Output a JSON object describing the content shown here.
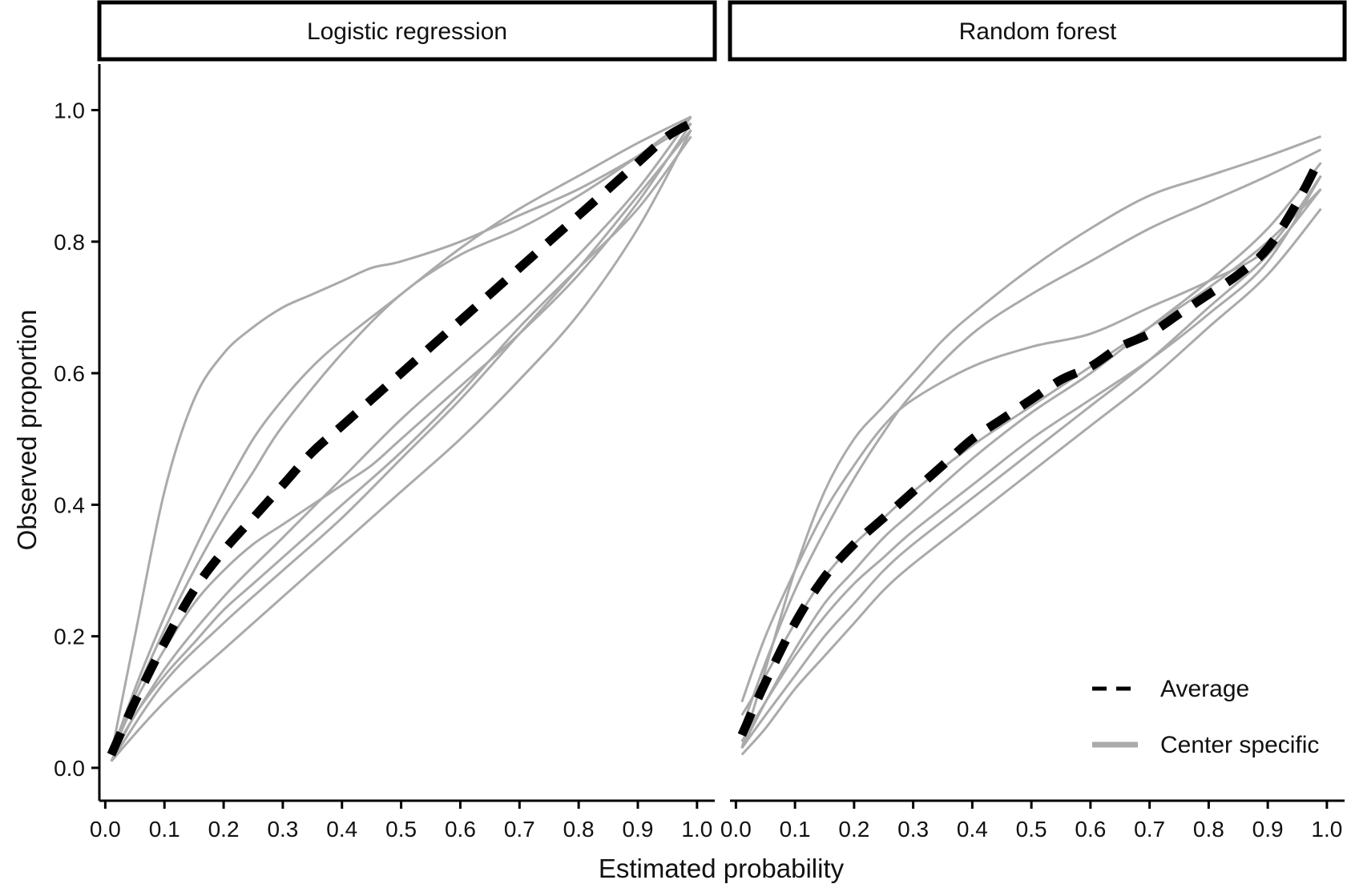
{
  "chart_data": [
    {
      "type": "line",
      "title": "Logistic regression",
      "xlabel": "Estimated probability",
      "ylabel": "Observed proportion",
      "xlim": [
        -0.01,
        1.03
      ],
      "ylim": [
        -0.05,
        1.07
      ],
      "x_ticks": [
        "0.0",
        "0.1",
        "0.2",
        "0.3",
        "0.4",
        "0.5",
        "0.6",
        "0.7",
        "0.8",
        "0.9",
        "1.0"
      ],
      "y_ticks": [
        "0.0",
        "0.2",
        "0.4",
        "0.6",
        "0.8",
        "1.0"
      ],
      "series": [
        {
          "name": "Average",
          "style": "dashed",
          "color": "#000000",
          "x": [
            0.01,
            0.05,
            0.1,
            0.15,
            0.2,
            0.25,
            0.3,
            0.35,
            0.4,
            0.45,
            0.5,
            0.55,
            0.6,
            0.65,
            0.7,
            0.75,
            0.8,
            0.85,
            0.9,
            0.95,
            0.99
          ],
          "y": [
            0.02,
            0.1,
            0.19,
            0.27,
            0.33,
            0.38,
            0.43,
            0.48,
            0.52,
            0.56,
            0.6,
            0.64,
            0.68,
            0.72,
            0.76,
            0.8,
            0.84,
            0.88,
            0.92,
            0.96,
            0.98
          ]
        },
        {
          "name": "Center specific 1",
          "style": "solid",
          "color": "#aaaaaa",
          "x": [
            0.01,
            0.05,
            0.1,
            0.15,
            0.2,
            0.25,
            0.3,
            0.35,
            0.4,
            0.45,
            0.5,
            0.6,
            0.7,
            0.8,
            0.9,
            0.99
          ],
          "y": [
            0.02,
            0.2,
            0.42,
            0.56,
            0.63,
            0.67,
            0.7,
            0.72,
            0.74,
            0.76,
            0.77,
            0.8,
            0.84,
            0.88,
            0.93,
            0.98
          ]
        },
        {
          "name": "Center specific 2",
          "style": "solid",
          "color": "#aaaaaa",
          "x": [
            0.01,
            0.05,
            0.1,
            0.15,
            0.2,
            0.25,
            0.3,
            0.35,
            0.4,
            0.5,
            0.6,
            0.7,
            0.8,
            0.9,
            0.99
          ],
          "y": [
            0.02,
            0.12,
            0.23,
            0.33,
            0.42,
            0.5,
            0.56,
            0.61,
            0.65,
            0.72,
            0.79,
            0.85,
            0.9,
            0.95,
            0.99
          ]
        },
        {
          "name": "Center specific 3",
          "style": "solid",
          "color": "#aaaaaa",
          "x": [
            0.01,
            0.05,
            0.1,
            0.15,
            0.2,
            0.25,
            0.3,
            0.4,
            0.5,
            0.6,
            0.7,
            0.8,
            0.9,
            0.99
          ],
          "y": [
            0.02,
            0.11,
            0.21,
            0.3,
            0.38,
            0.45,
            0.52,
            0.63,
            0.72,
            0.78,
            0.82,
            0.87,
            0.93,
            0.99
          ]
        },
        {
          "name": "Center specific 4",
          "style": "solid",
          "color": "#aaaaaa",
          "x": [
            0.01,
            0.05,
            0.1,
            0.15,
            0.2,
            0.25,
            0.3,
            0.35,
            0.4,
            0.45,
            0.5,
            0.6,
            0.7,
            0.8,
            0.9,
            0.99
          ],
          "y": [
            0.02,
            0.1,
            0.18,
            0.25,
            0.3,
            0.34,
            0.37,
            0.4,
            0.43,
            0.46,
            0.5,
            0.58,
            0.66,
            0.75,
            0.86,
            0.98
          ]
        },
        {
          "name": "Center specific 5",
          "style": "solid",
          "color": "#aaaaaa",
          "x": [
            0.01,
            0.05,
            0.1,
            0.15,
            0.2,
            0.25,
            0.3,
            0.4,
            0.5,
            0.6,
            0.7,
            0.8,
            0.9,
            0.99
          ],
          "y": [
            0.01,
            0.08,
            0.14,
            0.19,
            0.24,
            0.28,
            0.32,
            0.4,
            0.48,
            0.57,
            0.67,
            0.76,
            0.85,
            0.96
          ]
        },
        {
          "name": "Center specific 6",
          "style": "solid",
          "color": "#aaaaaa",
          "x": [
            0.01,
            0.1,
            0.2,
            0.3,
            0.4,
            0.5,
            0.6,
            0.7,
            0.8,
            0.9,
            0.99
          ],
          "y": [
            0.01,
            0.13,
            0.22,
            0.3,
            0.38,
            0.47,
            0.56,
            0.66,
            0.76,
            0.87,
            0.97
          ]
        },
        {
          "name": "Center specific 7",
          "style": "solid",
          "color": "#aaaaaa",
          "x": [
            0.01,
            0.1,
            0.2,
            0.3,
            0.4,
            0.5,
            0.6,
            0.7,
            0.8,
            0.9,
            0.99
          ],
          "y": [
            0.01,
            0.1,
            0.18,
            0.26,
            0.34,
            0.42,
            0.5,
            0.59,
            0.69,
            0.82,
            0.97
          ]
        },
        {
          "name": "Center specific 8",
          "style": "solid",
          "color": "#aaaaaa",
          "x": [
            0.01,
            0.1,
            0.2,
            0.3,
            0.4,
            0.5,
            0.6,
            0.7,
            0.8,
            0.9,
            0.99
          ],
          "y": [
            0.02,
            0.15,
            0.26,
            0.35,
            0.44,
            0.53,
            0.61,
            0.69,
            0.78,
            0.88,
            0.99
          ]
        }
      ]
    },
    {
      "type": "line",
      "title": "Random forest",
      "xlabel": "Estimated probability",
      "ylabel": "Observed proportion",
      "xlim": [
        -0.01,
        1.03
      ],
      "ylim": [
        -0.05,
        1.07
      ],
      "x_ticks": [
        "0.0",
        "0.1",
        "0.2",
        "0.3",
        "0.4",
        "0.5",
        "0.6",
        "0.7",
        "0.8",
        "0.9",
        "1.0"
      ],
      "y_ticks": [
        "0.0",
        "0.2",
        "0.4",
        "0.6",
        "0.8",
        "1.0"
      ],
      "series": [
        {
          "name": "Average",
          "style": "dashed",
          "color": "#000000",
          "x": [
            0.01,
            0.05,
            0.1,
            0.15,
            0.2,
            0.25,
            0.3,
            0.35,
            0.4,
            0.45,
            0.5,
            0.55,
            0.6,
            0.65,
            0.7,
            0.75,
            0.8,
            0.85,
            0.9,
            0.95,
            0.99
          ],
          "y": [
            0.05,
            0.13,
            0.22,
            0.29,
            0.34,
            0.38,
            0.42,
            0.46,
            0.5,
            0.53,
            0.56,
            0.59,
            0.61,
            0.64,
            0.66,
            0.69,
            0.72,
            0.75,
            0.79,
            0.86,
            0.93
          ]
        },
        {
          "name": "Center specific 1",
          "style": "solid",
          "color": "#aaaaaa",
          "x": [
            0.01,
            0.05,
            0.1,
            0.15,
            0.2,
            0.25,
            0.3,
            0.4,
            0.5,
            0.6,
            0.7,
            0.8,
            0.9,
            0.99
          ],
          "y": [
            0.1,
            0.2,
            0.3,
            0.39,
            0.46,
            0.52,
            0.56,
            0.61,
            0.64,
            0.66,
            0.7,
            0.74,
            0.79,
            0.9
          ]
        },
        {
          "name": "Center specific 2",
          "style": "solid",
          "color": "#aaaaaa",
          "x": [
            0.01,
            0.05,
            0.1,
            0.15,
            0.2,
            0.25,
            0.3,
            0.35,
            0.4,
            0.5,
            0.6,
            0.7,
            0.8,
            0.9,
            0.99
          ],
          "y": [
            0.03,
            0.15,
            0.3,
            0.42,
            0.5,
            0.55,
            0.6,
            0.65,
            0.69,
            0.76,
            0.82,
            0.87,
            0.9,
            0.93,
            0.96
          ]
        },
        {
          "name": "Center specific 3",
          "style": "solid",
          "color": "#aaaaaa",
          "x": [
            0.01,
            0.05,
            0.1,
            0.15,
            0.2,
            0.25,
            0.3,
            0.4,
            0.5,
            0.6,
            0.7,
            0.8,
            0.9,
            0.99
          ],
          "y": [
            0.06,
            0.16,
            0.27,
            0.36,
            0.44,
            0.51,
            0.57,
            0.66,
            0.72,
            0.77,
            0.82,
            0.86,
            0.9,
            0.94
          ]
        },
        {
          "name": "Center specific 4",
          "style": "solid",
          "color": "#aaaaaa",
          "x": [
            0.01,
            0.05,
            0.1,
            0.15,
            0.2,
            0.25,
            0.3,
            0.4,
            0.5,
            0.6,
            0.7,
            0.8,
            0.9,
            0.99
          ],
          "y": [
            0.03,
            0.1,
            0.18,
            0.25,
            0.3,
            0.35,
            0.39,
            0.47,
            0.54,
            0.6,
            0.67,
            0.74,
            0.82,
            0.92
          ]
        },
        {
          "name": "Center specific 5",
          "style": "solid",
          "color": "#aaaaaa",
          "x": [
            0.01,
            0.05,
            0.1,
            0.15,
            0.2,
            0.25,
            0.3,
            0.4,
            0.5,
            0.6,
            0.7,
            0.8,
            0.9,
            0.99
          ],
          "y": [
            0.04,
            0.1,
            0.17,
            0.23,
            0.28,
            0.32,
            0.36,
            0.43,
            0.5,
            0.56,
            0.62,
            0.69,
            0.77,
            0.9
          ]
        },
        {
          "name": "Center specific 6",
          "style": "solid",
          "color": "#aaaaaa",
          "x": [
            0.01,
            0.05,
            0.1,
            0.15,
            0.2,
            0.25,
            0.3,
            0.4,
            0.5,
            0.6,
            0.7,
            0.8,
            0.9,
            0.99
          ],
          "y": [
            0.03,
            0.08,
            0.14,
            0.2,
            0.25,
            0.3,
            0.34,
            0.41,
            0.48,
            0.55,
            0.62,
            0.7,
            0.78,
            0.88
          ]
        },
        {
          "name": "Center specific 7",
          "style": "solid",
          "color": "#aaaaaa",
          "x": [
            0.01,
            0.05,
            0.1,
            0.15,
            0.2,
            0.25,
            0.3,
            0.4,
            0.5,
            0.6,
            0.7,
            0.8,
            0.9,
            0.99
          ],
          "y": [
            0.02,
            0.06,
            0.12,
            0.17,
            0.22,
            0.27,
            0.31,
            0.38,
            0.45,
            0.52,
            0.59,
            0.67,
            0.75,
            0.85
          ]
        },
        {
          "name": "Center specific 8",
          "style": "solid",
          "color": "#aaaaaa",
          "x": [
            0.01,
            0.05,
            0.1,
            0.15,
            0.2,
            0.25,
            0.3,
            0.4,
            0.5,
            0.6,
            0.7,
            0.8,
            0.9,
            0.99
          ],
          "y": [
            0.08,
            0.14,
            0.22,
            0.29,
            0.34,
            0.38,
            0.42,
            0.49,
            0.55,
            0.61,
            0.67,
            0.73,
            0.8,
            0.88
          ]
        }
      ]
    }
  ],
  "legend": {
    "position": "bottom-right",
    "items": [
      {
        "label": "Average",
        "style": "dashed",
        "color": "#000000"
      },
      {
        "label": "Center specific",
        "style": "solid",
        "color": "#aaaaaa"
      }
    ]
  }
}
